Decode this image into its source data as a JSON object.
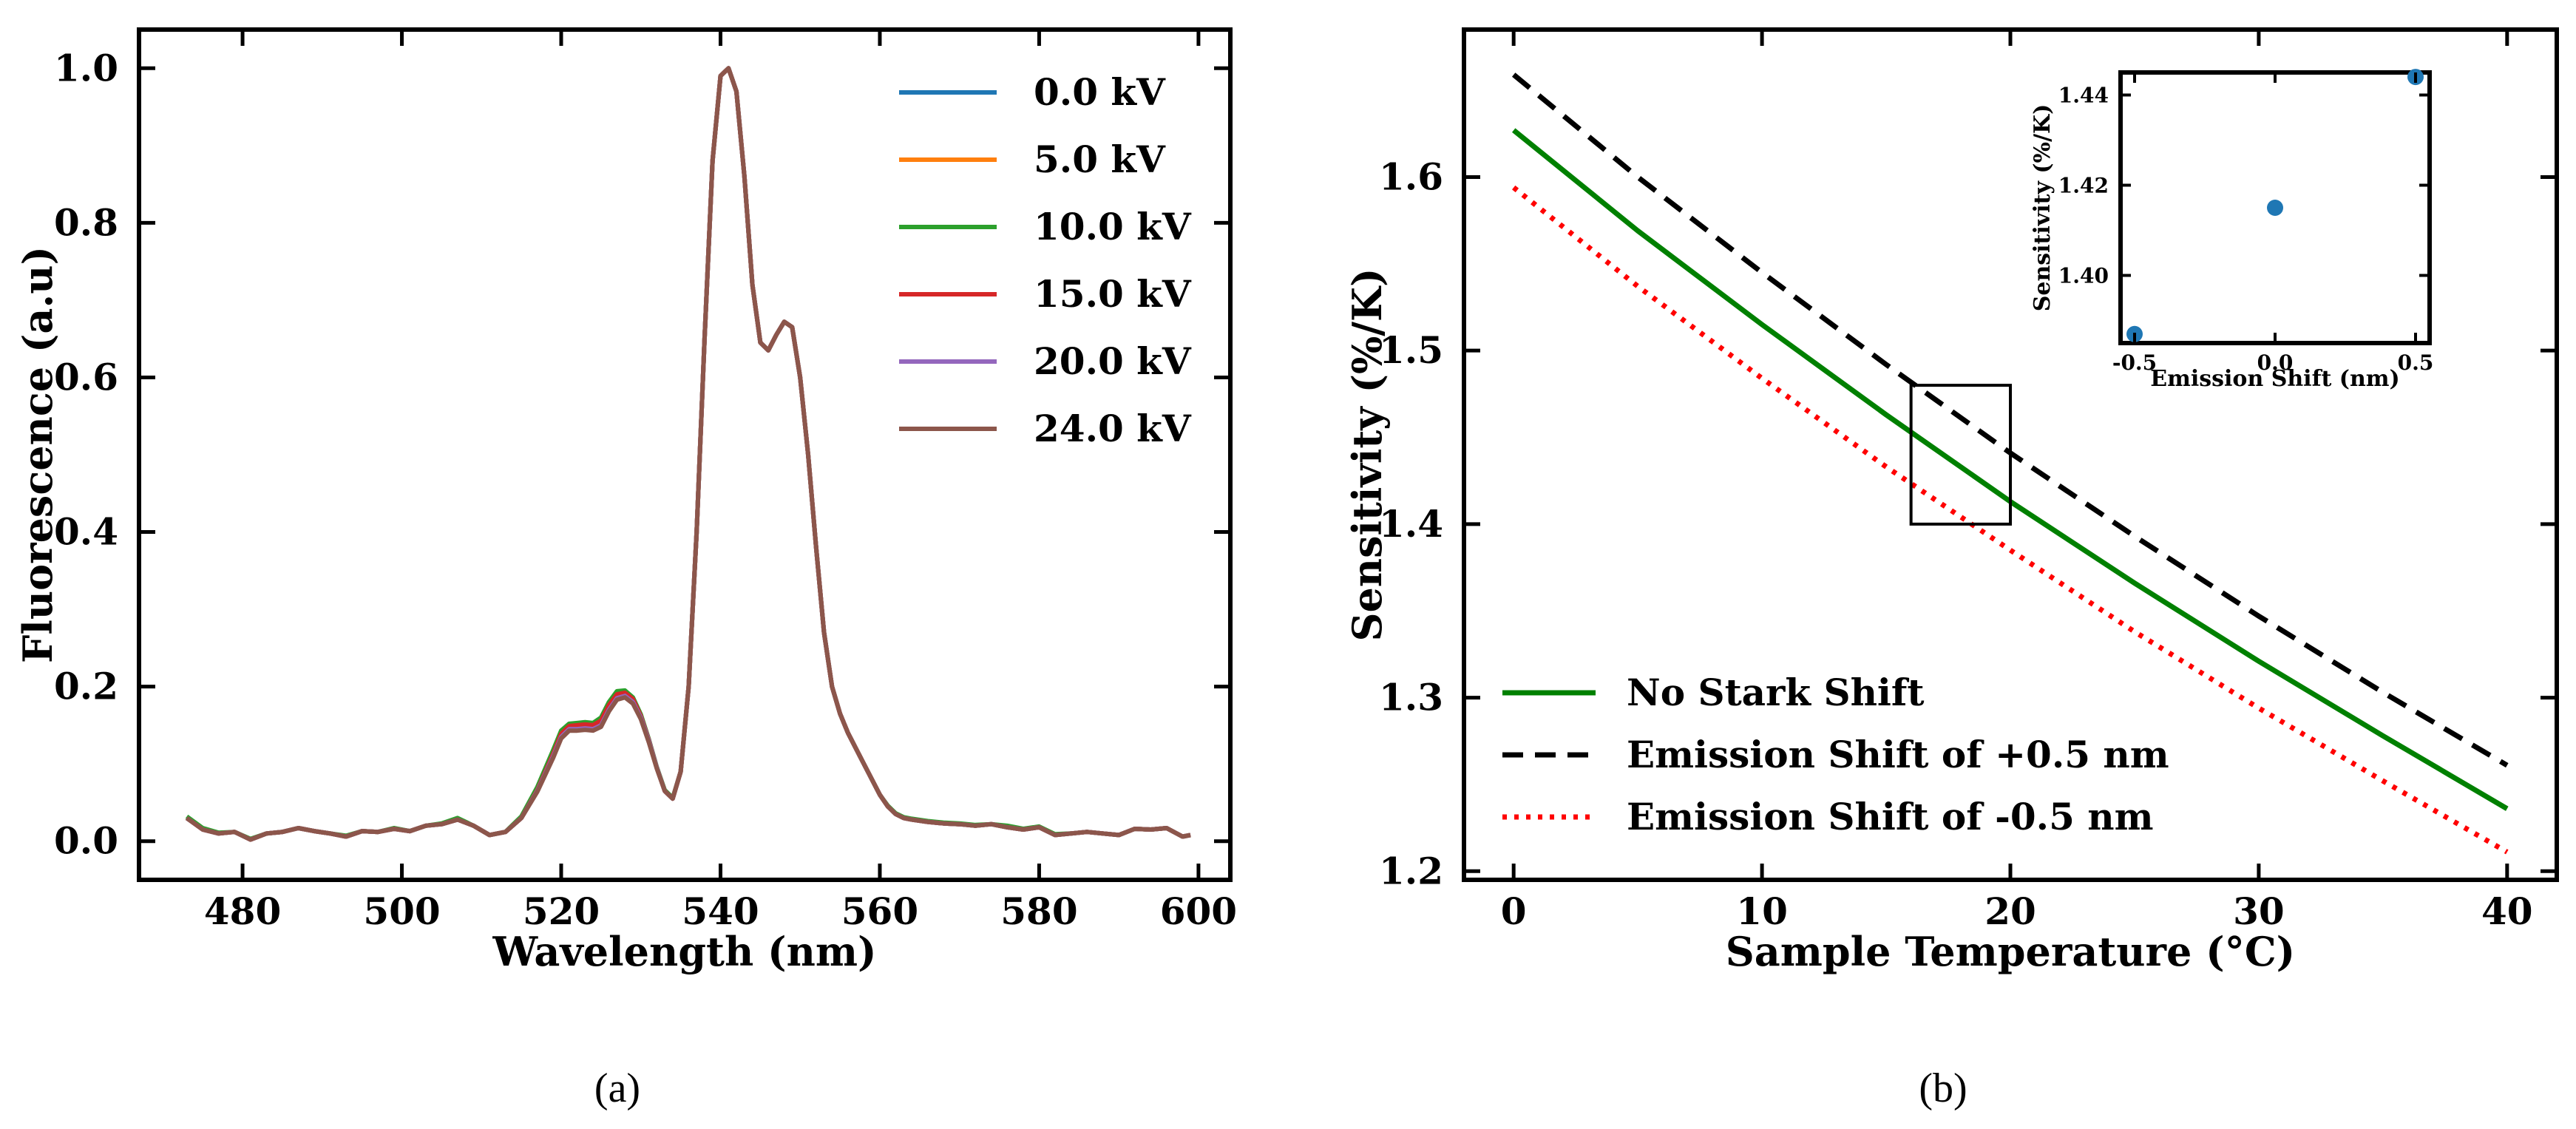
{
  "chart_data": [
    {
      "type": "line",
      "caption": "(a)",
      "xlabel": "Wavelength (nm)",
      "ylabel": "Fluorescence (a.u)",
      "xlim": [
        467,
        604
      ],
      "ylim": [
        -0.05,
        1.05
      ],
      "xticks": [
        480,
        500,
        520,
        540,
        560,
        580,
        600
      ],
      "yticks": [
        0.0,
        0.2,
        0.4,
        0.6,
        0.8,
        1.0
      ],
      "xtick_labels": [
        "480",
        "500",
        "520",
        "540",
        "560",
        "580",
        "600"
      ],
      "ytick_labels": [
        "0.0",
        "0.2",
        "0.4",
        "0.6",
        "0.8",
        "1.0"
      ],
      "legend_position": "top-right",
      "x": [
        473,
        475,
        477,
        479,
        481,
        483,
        485,
        487,
        489,
        491,
        493,
        495,
        497,
        499,
        501,
        503,
        505,
        507,
        509,
        511,
        513,
        515,
        517,
        519,
        520,
        521,
        522,
        523,
        524,
        525,
        526,
        527,
        528,
        529,
        530,
        531,
        532,
        533,
        534,
        535,
        536,
        537,
        538,
        539,
        540,
        541,
        542,
        543,
        544,
        545,
        546,
        547,
        548,
        549,
        550,
        551,
        552,
        553,
        554,
        555,
        556,
        557,
        558,
        559,
        560,
        561,
        562,
        563,
        564,
        566,
        568,
        570,
        572,
        574,
        576,
        578,
        580,
        582,
        584,
        586,
        588,
        590,
        592,
        594,
        596,
        598,
        599
      ],
      "series": [
        {
          "name": "0.0 kV",
          "color": "#1f77b4",
          "values": [
            0.03,
            0.015,
            0.01,
            0.012,
            0.002,
            0.01,
            0.012,
            0.017,
            0.013,
            0.01,
            0.006,
            0.013,
            0.012,
            0.016,
            0.013,
            0.02,
            0.022,
            0.028,
            0.02,
            0.008,
            0.012,
            0.03,
            0.065,
            0.11,
            0.135,
            0.145,
            0.145,
            0.146,
            0.145,
            0.15,
            0.17,
            0.185,
            0.188,
            0.18,
            0.16,
            0.13,
            0.095,
            0.065,
            0.055,
            0.09,
            0.2,
            0.4,
            0.65,
            0.88,
            0.99,
            1.0,
            0.97,
            0.86,
            0.72,
            0.645,
            0.635,
            0.655,
            0.672,
            0.665,
            0.6,
            0.5,
            0.38,
            0.27,
            0.2,
            0.165,
            0.14,
            0.12,
            0.1,
            0.08,
            0.06,
            0.045,
            0.035,
            0.03,
            0.028,
            0.025,
            0.023,
            0.022,
            0.02,
            0.022,
            0.018,
            0.015,
            0.018,
            0.008,
            0.01,
            0.012,
            0.01,
            0.008,
            0.016,
            0.015,
            0.017,
            0.006,
            0.008
          ]
        },
        {
          "name": "5.0 kV",
          "color": "#ff7f0e",
          "values": [
            0.03,
            0.015,
            0.01,
            0.012,
            0.002,
            0.01,
            0.012,
            0.017,
            0.013,
            0.01,
            0.006,
            0.013,
            0.012,
            0.016,
            0.013,
            0.02,
            0.022,
            0.028,
            0.02,
            0.008,
            0.012,
            0.03,
            0.065,
            0.11,
            0.136,
            0.146,
            0.147,
            0.148,
            0.147,
            0.153,
            0.173,
            0.188,
            0.19,
            0.182,
            0.161,
            0.13,
            0.095,
            0.065,
            0.055,
            0.09,
            0.2,
            0.4,
            0.65,
            0.88,
            0.99,
            1.0,
            0.97,
            0.86,
            0.72,
            0.645,
            0.635,
            0.655,
            0.672,
            0.665,
            0.6,
            0.5,
            0.38,
            0.27,
            0.2,
            0.165,
            0.14,
            0.12,
            0.1,
            0.08,
            0.06,
            0.045,
            0.035,
            0.03,
            0.028,
            0.025,
            0.023,
            0.022,
            0.02,
            0.022,
            0.018,
            0.015,
            0.018,
            0.008,
            0.01,
            0.012,
            0.01,
            0.008,
            0.016,
            0.015,
            0.017,
            0.006,
            0.008
          ]
        },
        {
          "name": "10.0 kV",
          "color": "#2ca02c",
          "values": [
            0.032,
            0.017,
            0.011,
            0.012,
            0.003,
            0.01,
            0.012,
            0.017,
            0.013,
            0.01,
            0.007,
            0.013,
            0.012,
            0.017,
            0.013,
            0.02,
            0.023,
            0.03,
            0.02,
            0.008,
            0.012,
            0.032,
            0.07,
            0.118,
            0.143,
            0.152,
            0.153,
            0.154,
            0.153,
            0.16,
            0.18,
            0.194,
            0.195,
            0.186,
            0.164,
            0.132,
            0.096,
            0.066,
            0.056,
            0.09,
            0.2,
            0.4,
            0.65,
            0.88,
            0.99,
            1.0,
            0.97,
            0.86,
            0.72,
            0.645,
            0.635,
            0.655,
            0.672,
            0.665,
            0.6,
            0.5,
            0.38,
            0.27,
            0.2,
            0.165,
            0.14,
            0.12,
            0.1,
            0.08,
            0.06,
            0.046,
            0.036,
            0.031,
            0.029,
            0.026,
            0.024,
            0.023,
            0.021,
            0.022,
            0.02,
            0.016,
            0.019,
            0.009,
            0.01,
            0.012,
            0.01,
            0.008,
            0.016,
            0.015,
            0.017,
            0.006,
            0.008
          ]
        },
        {
          "name": "15.0 kV",
          "color": "#d62728",
          "values": [
            0.03,
            0.015,
            0.01,
            0.012,
            0.002,
            0.01,
            0.012,
            0.017,
            0.013,
            0.01,
            0.006,
            0.013,
            0.012,
            0.016,
            0.013,
            0.02,
            0.022,
            0.028,
            0.02,
            0.008,
            0.012,
            0.03,
            0.066,
            0.113,
            0.139,
            0.149,
            0.15,
            0.151,
            0.15,
            0.156,
            0.176,
            0.19,
            0.192,
            0.184,
            0.162,
            0.131,
            0.095,
            0.065,
            0.055,
            0.09,
            0.2,
            0.4,
            0.65,
            0.88,
            0.99,
            1.0,
            0.97,
            0.86,
            0.72,
            0.645,
            0.635,
            0.655,
            0.672,
            0.665,
            0.6,
            0.5,
            0.38,
            0.27,
            0.2,
            0.165,
            0.14,
            0.12,
            0.1,
            0.08,
            0.06,
            0.045,
            0.035,
            0.03,
            0.028,
            0.025,
            0.023,
            0.022,
            0.02,
            0.022,
            0.018,
            0.015,
            0.018,
            0.008,
            0.01,
            0.012,
            0.01,
            0.008,
            0.016,
            0.015,
            0.017,
            0.006,
            0.008
          ]
        },
        {
          "name": "20.0 kV",
          "color": "#9467bd",
          "values": [
            0.03,
            0.015,
            0.01,
            0.012,
            0.002,
            0.01,
            0.012,
            0.017,
            0.013,
            0.01,
            0.006,
            0.013,
            0.012,
            0.016,
            0.013,
            0.02,
            0.022,
            0.028,
            0.02,
            0.008,
            0.012,
            0.03,
            0.065,
            0.11,
            0.135,
            0.145,
            0.145,
            0.146,
            0.145,
            0.15,
            0.17,
            0.185,
            0.188,
            0.18,
            0.16,
            0.13,
            0.095,
            0.065,
            0.055,
            0.09,
            0.2,
            0.4,
            0.65,
            0.88,
            0.99,
            1.0,
            0.97,
            0.86,
            0.72,
            0.645,
            0.635,
            0.655,
            0.672,
            0.665,
            0.6,
            0.5,
            0.38,
            0.27,
            0.2,
            0.165,
            0.14,
            0.12,
            0.1,
            0.08,
            0.06,
            0.045,
            0.035,
            0.03,
            0.028,
            0.025,
            0.023,
            0.022,
            0.02,
            0.022,
            0.018,
            0.015,
            0.018,
            0.008,
            0.01,
            0.012,
            0.01,
            0.008,
            0.016,
            0.015,
            0.017,
            0.006,
            0.008
          ]
        },
        {
          "name": "24.0 kV",
          "color": "#8c564b",
          "values": [
            0.03,
            0.015,
            0.01,
            0.012,
            0.002,
            0.01,
            0.012,
            0.017,
            0.013,
            0.01,
            0.006,
            0.013,
            0.012,
            0.016,
            0.013,
            0.02,
            0.022,
            0.028,
            0.02,
            0.008,
            0.012,
            0.03,
            0.064,
            0.108,
            0.133,
            0.143,
            0.143,
            0.144,
            0.143,
            0.148,
            0.168,
            0.183,
            0.186,
            0.178,
            0.158,
            0.128,
            0.094,
            0.065,
            0.055,
            0.09,
            0.2,
            0.4,
            0.65,
            0.88,
            0.99,
            1.0,
            0.97,
            0.86,
            0.72,
            0.645,
            0.635,
            0.655,
            0.672,
            0.665,
            0.6,
            0.5,
            0.38,
            0.27,
            0.2,
            0.165,
            0.14,
            0.12,
            0.1,
            0.08,
            0.06,
            0.045,
            0.035,
            0.03,
            0.028,
            0.025,
            0.023,
            0.022,
            0.02,
            0.022,
            0.018,
            0.015,
            0.018,
            0.008,
            0.01,
            0.012,
            0.01,
            0.008,
            0.016,
            0.015,
            0.017,
            0.006,
            0.008
          ]
        }
      ]
    },
    {
      "type": "line",
      "caption": "(b)",
      "xlabel": "Sample Temperature (°C)",
      "ylabel": "Sensitivity (%/K)",
      "xlim": [
        -2,
        42
      ],
      "ylim": [
        1.195,
        1.685
      ],
      "xticks": [
        0,
        10,
        20,
        30,
        40
      ],
      "yticks": [
        1.2,
        1.3,
        1.4,
        1.5,
        1.6
      ],
      "xtick_labels": [
        "0",
        "10",
        "20",
        "30",
        "40"
      ],
      "ytick_labels": [
        "1.2",
        "1.3",
        "1.4",
        "1.5",
        "1.6"
      ],
      "legend_position": "bottom-left",
      "x": [
        0,
        5,
        10,
        15,
        20,
        25,
        30,
        35,
        40
      ],
      "series": [
        {
          "name": "No Stark Shift",
          "color": "#008000",
          "dash": "solid",
          "values": [
            1.627,
            1.569,
            1.515,
            1.463,
            1.413,
            1.366,
            1.321,
            1.278,
            1.236
          ]
        },
        {
          "name": "Emission Shift of +0.5 nm",
          "color": "#000000",
          "dash": "dashed",
          "values": [
            1.659,
            1.6,
            1.545,
            1.492,
            1.441,
            1.393,
            1.347,
            1.303,
            1.261
          ]
        },
        {
          "name": "Emission Shift of -0.5 nm",
          "color": "#ff0000",
          "dash": "dotted",
          "values": [
            1.594,
            1.537,
            1.484,
            1.433,
            1.385,
            1.338,
            1.294,
            1.252,
            1.211
          ]
        }
      ],
      "zoom_box": {
        "x": [
          16,
          20
        ],
        "y": [
          1.4,
          1.48
        ]
      },
      "inset": {
        "type": "scatter",
        "xlabel": "Emission Shift (nm)",
        "ylabel": "Sensitivity (%/K)",
        "xlim": [
          -0.55,
          0.55
        ],
        "ylim": [
          1.385,
          1.445
        ],
        "xticks": [
          -0.5,
          0.0,
          0.5
        ],
        "yticks": [
          1.4,
          1.42,
          1.44
        ],
        "xtick_labels": [
          "-0.5",
          "0.0",
          "0.5"
        ],
        "ytick_labels": [
          "1.40",
          "1.42",
          "1.44"
        ],
        "color": "#1f77b4",
        "x": [
          -0.5,
          0.0,
          0.5
        ],
        "y": [
          1.387,
          1.415,
          1.444
        ]
      }
    }
  ]
}
